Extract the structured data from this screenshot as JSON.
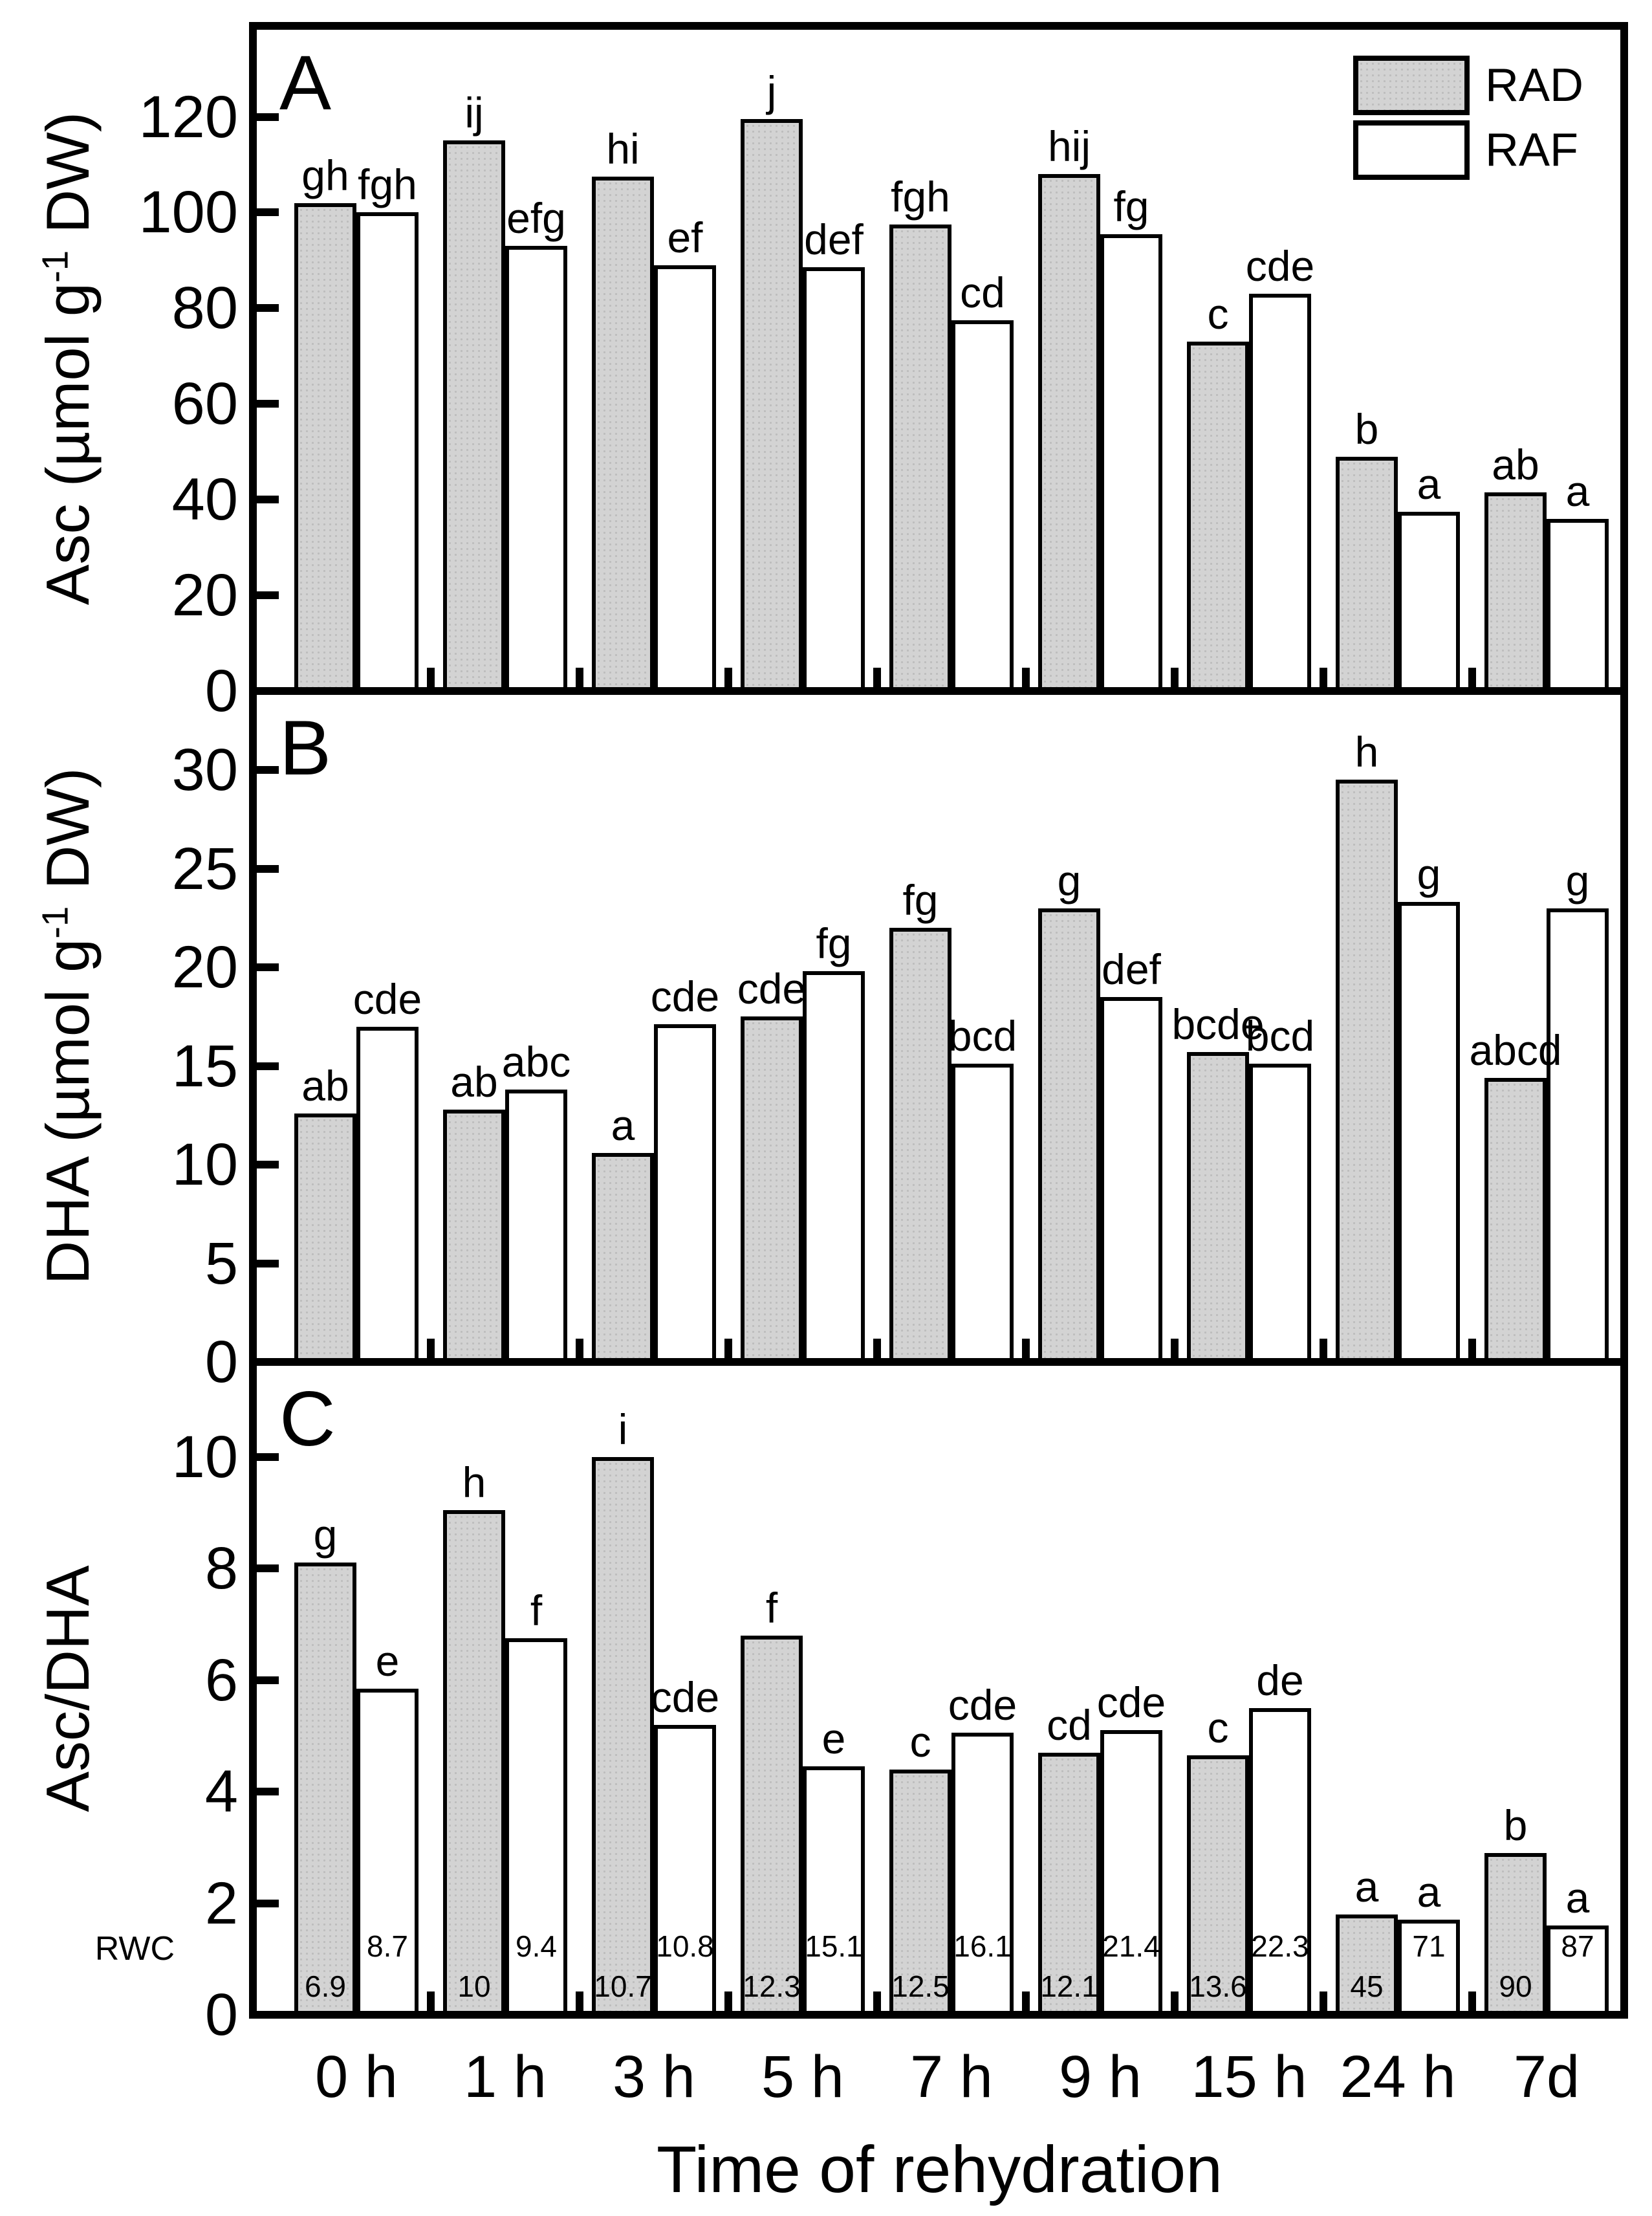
{
  "figure": {
    "x_axis_title": "Time of rehydration",
    "rwc_row_label": "RWC",
    "legend": [
      {
        "label": "RAD",
        "fill": "#d3d3d3"
      },
      {
        "label": "RAF",
        "fill": "#ffffff"
      }
    ],
    "colors": {
      "rad_fill": "#d3d3d3",
      "raf_fill": "#ffffff",
      "frame": "#000000",
      "text": "#000000",
      "background": "#ffffff"
    }
  },
  "categories": [
    "0 h",
    "1 h",
    "3 h",
    "5 h",
    "7 h",
    "9 h",
    "15 h",
    "24 h",
    "7d"
  ],
  "chart_data": [
    {
      "type": "bar",
      "panel_label": "A",
      "ylabel": "Asc (µmol g⁻¹ DW)",
      "ylabel_parts": {
        "pre": "Asc (µmol g",
        "sup": "-1",
        "post": " DW)"
      },
      "yticks": [
        0,
        20,
        40,
        60,
        80,
        100,
        120
      ],
      "ylim": [
        0,
        139
      ],
      "grid": false,
      "legend_position": "top-right",
      "categories": [
        "0 h",
        "1 h",
        "3 h",
        "5 h",
        "7 h",
        "9 h",
        "15 h",
        "24 h",
        "7d"
      ],
      "series": [
        {
          "name": "RAD",
          "fill": "#d3d3d3",
          "values": [
            102,
            115,
            107.5,
            119.5,
            97.5,
            108,
            73,
            49,
            41.5
          ],
          "letters": [
            "gh",
            "ij",
            "hi",
            "j",
            "fgh",
            "hij",
            "c",
            "b",
            "ab"
          ]
        },
        {
          "name": "RAF",
          "fill": "#ffffff",
          "values": [
            100,
            93,
            89,
            88.5,
            77.5,
            95.5,
            83,
            37.5,
            36
          ],
          "letters": [
            "fgh",
            "efg",
            "ef",
            "def",
            "cd",
            "fg",
            "cde",
            "a",
            "a"
          ]
        }
      ]
    },
    {
      "type": "bar",
      "panel_label": "B",
      "ylabel": "DHA (µmol g⁻¹ DW)",
      "ylabel_parts": {
        "pre": "DHA (µmol g",
        "sup": "-1",
        "post": " DW)"
      },
      "yticks": [
        0,
        5,
        10,
        15,
        20,
        25,
        30
      ],
      "ylim": [
        0,
        34
      ],
      "grid": false,
      "categories": [
        "0 h",
        "1 h",
        "3 h",
        "5 h",
        "7 h",
        "9 h",
        "15 h",
        "24 h",
        "7d"
      ],
      "series": [
        {
          "name": "RAD",
          "fill": "#d3d3d3",
          "values": [
            12.6,
            12.8,
            10.6,
            17.5,
            22,
            23,
            15.7,
            29.5,
            14.4
          ],
          "letters": [
            "ab",
            "ab",
            "a",
            "cde",
            "fg",
            "g",
            "bcde",
            "h",
            "abcd"
          ]
        },
        {
          "name": "RAF",
          "fill": "#ffffff",
          "values": [
            17,
            13.8,
            17.1,
            19.8,
            15.1,
            18.5,
            15.1,
            23.3,
            23
          ],
          "letters": [
            "cde",
            "abc",
            "cde",
            "fg",
            "bcd",
            "def",
            "bcd",
            "g",
            "g"
          ]
        }
      ]
    },
    {
      "type": "bar",
      "panel_label": "C",
      "ylabel": "Asc/DHA",
      "ylabel_parts": {
        "pre": "Asc/DHA",
        "sup": "",
        "post": ""
      },
      "yticks": [
        0,
        2,
        4,
        6,
        8,
        10
      ],
      "ylim": [
        0,
        11.7
      ],
      "grid": false,
      "categories": [
        "0 h",
        "1 h",
        "3 h",
        "5 h",
        "7 h",
        "9 h",
        "15 h",
        "24 h",
        "7d"
      ],
      "series": [
        {
          "name": "RAD",
          "fill": "#d3d3d3",
          "values": [
            8.1,
            9.05,
            10.0,
            6.8,
            4.4,
            4.7,
            4.65,
            1.8,
            2.9
          ],
          "letters": [
            "g",
            "h",
            "i",
            "f",
            "c",
            "cd",
            "c",
            "a",
            "b"
          ]
        },
        {
          "name": "RAF",
          "fill": "#ffffff",
          "values": [
            5.85,
            6.75,
            5.2,
            4.45,
            5.05,
            5.1,
            5.5,
            1.7,
            1.6
          ],
          "letters": [
            "e",
            "f",
            "cde",
            "e",
            "cde",
            "cde",
            "de",
            "a",
            "a"
          ]
        }
      ],
      "rwc_values": {
        "RAD": [
          "6.9",
          "10",
          "10.7",
          "12.3",
          "12.5",
          "12.1",
          "13.6",
          "45",
          "90"
        ],
        "RAF": [
          "8.7",
          "9.4",
          "10.8",
          "15.1",
          "16.1",
          "21.4",
          "22.3",
          "71",
          "87"
        ]
      }
    }
  ]
}
